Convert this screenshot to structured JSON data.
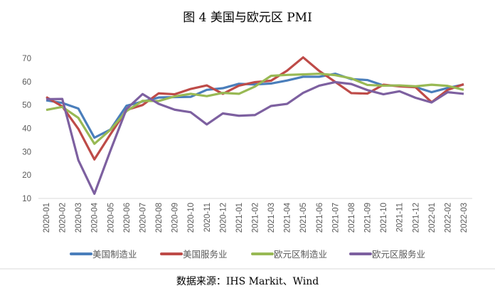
{
  "chart_data": {
    "type": "line",
    "title": "图 4 美国与欧元区 PMI",
    "source": "数据来源：IHS Markit、Wind",
    "xlabel": "",
    "ylabel": "",
    "ylim": [
      10,
      70
    ],
    "yticks": [
      "10",
      "20",
      "30",
      "40",
      "50",
      "60",
      "70"
    ],
    "legend_position": "bottom",
    "grid": false,
    "categories": [
      "2020-01",
      "2020-02",
      "2020-03",
      "2020-04",
      "2020-05",
      "2020-06",
      "2020-07",
      "2020-08",
      "2020-09",
      "2020-10",
      "2020-11",
      "2020-12",
      "2021-01",
      "2021-02",
      "2021-03",
      "2021-04",
      "2021-05",
      "2021-06",
      "2021-07",
      "2021-08",
      "2021-09",
      "2021-10",
      "2021-11",
      "2021-12",
      "2022-01",
      "2022-02",
      "2022-03"
    ],
    "series": [
      {
        "name": "美国制造业",
        "color": "#4a7ebb",
        "values": [
          52,
          50.9,
          48.5,
          36,
          39.5,
          49.7,
          51.5,
          53.2,
          53.4,
          53.5,
          56.5,
          57.2,
          59.1,
          58.8,
          59.2,
          60.5,
          62.1,
          62.1,
          63.4,
          61.1,
          60.7,
          58.4,
          58.3,
          57.7,
          55.5,
          57.3,
          58.8
        ]
      },
      {
        "name": "美国服务业",
        "color": "#be4b48",
        "values": [
          53.4,
          49.4,
          39.8,
          26.7,
          37.5,
          47.9,
          50,
          55,
          54.6,
          56.9,
          58.4,
          54.8,
          58.3,
          59.8,
          60.4,
          64.7,
          70.4,
          64.6,
          59.9,
          55.1,
          54.9,
          58.7,
          58,
          57.6,
          51.2,
          56.5,
          58.9
        ]
      },
      {
        "name": "欧元区制造业",
        "color": "#98b954",
        "values": [
          47.9,
          49.2,
          44.5,
          33.4,
          39.4,
          47.4,
          51.8,
          51.7,
          53.7,
          54.8,
          53.8,
          55.2,
          54.8,
          57.9,
          62.5,
          62.9,
          63.1,
          63.4,
          62.8,
          61.4,
          58.6,
          58.3,
          58.4,
          58,
          58.7,
          58.2,
          56.5
        ]
      },
      {
        "name": "欧元区服务业",
        "color": "#7d60a0",
        "values": [
          52.5,
          52.6,
          26.4,
          12,
          30.5,
          48.3,
          54.7,
          50.5,
          48,
          46.9,
          41.7,
          46.4,
          45.4,
          45.7,
          49.6,
          50.5,
          55.2,
          58.3,
          59.8,
          59,
          56.4,
          54.6,
          55.9,
          53.1,
          51.1,
          55.5,
          54.8
        ]
      }
    ]
  }
}
